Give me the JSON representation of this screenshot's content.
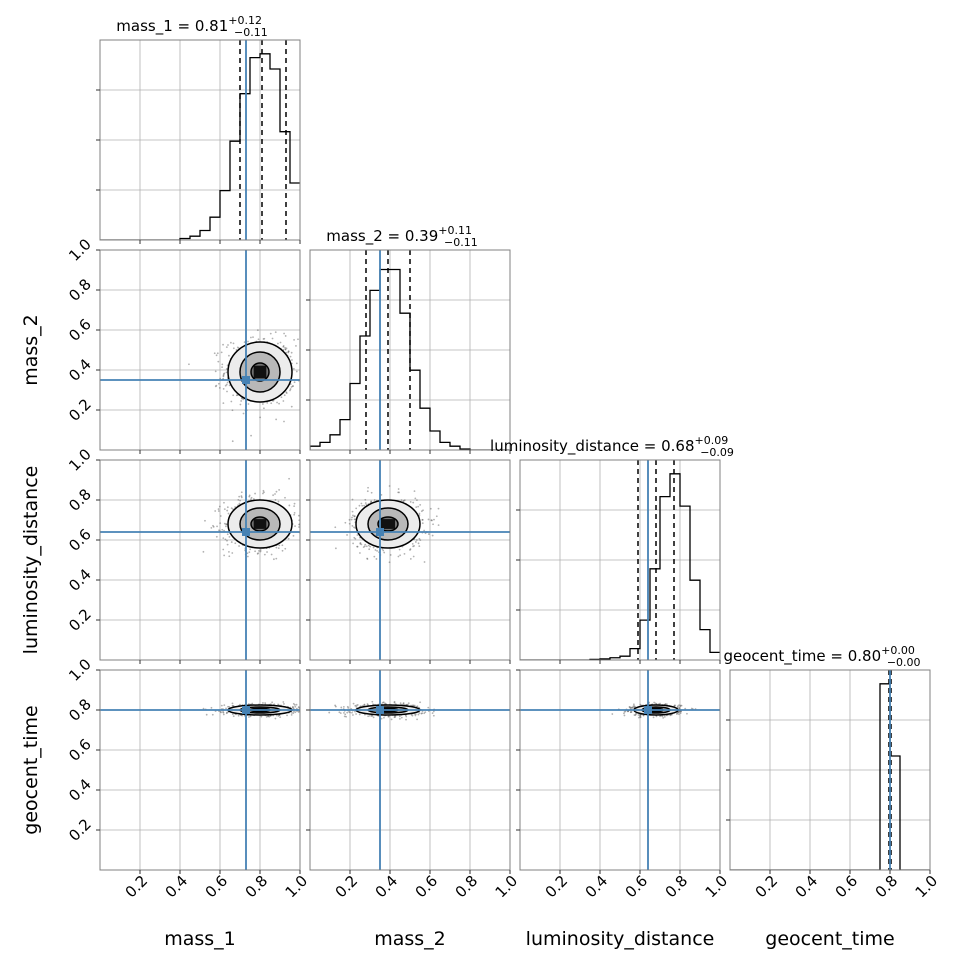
{
  "chart_data": {
    "type": "corner",
    "truth_color": "#4682b4",
    "parameters": [
      {
        "name": "mass_1",
        "axis_label": "mass_1",
        "title": "mass_1 = 0.81",
        "sup": "+0.12",
        "sub": "−0.11",
        "median": 0.81,
        "lower": 0.7,
        "upper": 0.93,
        "truth": 0.73
      },
      {
        "name": "mass_2",
        "axis_label": "mass_2",
        "title": "mass_2 = 0.39",
        "sup": "+0.11",
        "sub": "−0.11",
        "median": 0.39,
        "lower": 0.28,
        "upper": 0.5,
        "truth": 0.35
      },
      {
        "name": "luminosity_distance",
        "axis_label": "luminosity_distance",
        "title": "luminosity_distance = 0.68",
        "sup": "+0.09",
        "sub": "−0.09",
        "median": 0.68,
        "lower": 0.59,
        "upper": 0.77,
        "truth": 0.64
      },
      {
        "name": "geocent_time",
        "axis_label": "geocent_time",
        "title": "geocent_time = 0.80",
        "sup": "+0.00",
        "sub": "−0.00",
        "median": 0.8,
        "lower": 0.795,
        "upper": 0.805,
        "truth": 0.8
      }
    ],
    "x_range": [
      0,
      1
    ],
    "y_range": [
      0,
      1
    ],
    "tick_labels": [
      "0.2",
      "0.4",
      "0.6",
      "0.8",
      "1.0"
    ],
    "grid": true,
    "histograms": [
      {
        "bin_edges": [
          0.0,
          0.05,
          0.1,
          0.15,
          0.2,
          0.25,
          0.3,
          0.35,
          0.4,
          0.45,
          0.5,
          0.55,
          0.6,
          0.65,
          0.7,
          0.75,
          0.8,
          0.85,
          0.9,
          0.95,
          1.0
        ],
        "counts": [
          0,
          0,
          0,
          0,
          0,
          0,
          0,
          0,
          0.008,
          0.02,
          0.05,
          0.12,
          0.26,
          0.52,
          0.77,
          0.96,
          0.98,
          0.9,
          0.57,
          0.3
        ]
      },
      {
        "bin_edges": [
          0.0,
          0.05,
          0.1,
          0.15,
          0.2,
          0.25,
          0.3,
          0.35,
          0.4,
          0.45,
          0.5,
          0.55,
          0.6,
          0.65,
          0.7,
          0.75,
          0.8,
          0.85,
          0.9,
          0.95,
          1.0
        ],
        "counts": [
          0.02,
          0.04,
          0.08,
          0.16,
          0.35,
          0.6,
          0.84,
          0.95,
          0.95,
          0.72,
          0.42,
          0.22,
          0.1,
          0.04,
          0.02,
          0.005,
          0,
          0,
          0,
          0
        ]
      },
      {
        "bin_edges": [
          0.0,
          0.05,
          0.1,
          0.15,
          0.2,
          0.25,
          0.3,
          0.35,
          0.4,
          0.45,
          0.5,
          0.55,
          0.6,
          0.65,
          0.7,
          0.75,
          0.8,
          0.85,
          0.9,
          0.95,
          1.0
        ],
        "counts": [
          0,
          0,
          0,
          0,
          0,
          0,
          0,
          0.003,
          0.006,
          0.012,
          0.02,
          0.06,
          0.21,
          0.48,
          0.86,
          0.98,
          0.81,
          0.42,
          0.16,
          0.04
        ]
      },
      {
        "bin_edges": [
          0.0,
          0.05,
          0.1,
          0.15,
          0.2,
          0.25,
          0.3,
          0.35,
          0.4,
          0.45,
          0.5,
          0.55,
          0.6,
          0.65,
          0.7,
          0.75,
          0.8,
          0.85,
          0.9,
          0.95,
          1.0
        ],
        "counts": [
          0,
          0,
          0,
          0,
          0,
          0,
          0,
          0,
          0,
          0,
          0,
          0,
          0,
          0,
          0,
          0.98,
          0.6,
          0,
          0,
          0
        ]
      }
    ],
    "joint": [
      {
        "row": 1,
        "col": 0,
        "cx": 0.8,
        "cy": 0.39,
        "rx": [
          0.045,
          0.1,
          0.16
        ],
        "ry": [
          0.045,
          0.1,
          0.15
        ]
      },
      {
        "row": 2,
        "col": 0,
        "cx": 0.8,
        "cy": 0.68,
        "rx": [
          0.045,
          0.1,
          0.16
        ],
        "ry": [
          0.035,
          0.08,
          0.12
        ]
      },
      {
        "row": 2,
        "col": 1,
        "cx": 0.39,
        "cy": 0.68,
        "rx": [
          0.05,
          0.1,
          0.16
        ],
        "ry": [
          0.035,
          0.08,
          0.12
        ]
      },
      {
        "row": 3,
        "col": 0,
        "cx": 0.8,
        "cy": 0.8,
        "rx": [
          0.05,
          0.1,
          0.16
        ],
        "ry": [
          0.008,
          0.015,
          0.025
        ]
      },
      {
        "row": 3,
        "col": 1,
        "cx": 0.39,
        "cy": 0.8,
        "rx": [
          0.05,
          0.1,
          0.16
        ],
        "ry": [
          0.008,
          0.015,
          0.025
        ]
      },
      {
        "row": 3,
        "col": 2,
        "cx": 0.68,
        "cy": 0.8,
        "rx": [
          0.035,
          0.07,
          0.11
        ],
        "ry": [
          0.008,
          0.015,
          0.025
        ]
      }
    ]
  }
}
